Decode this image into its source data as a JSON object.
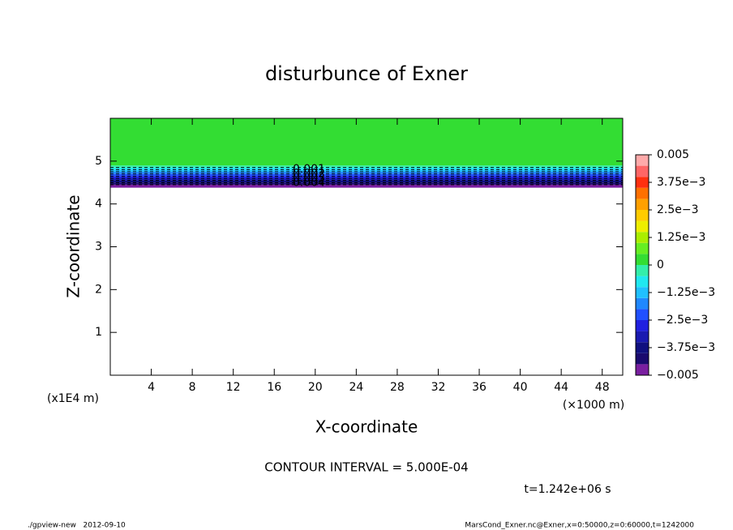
{
  "chart_data": {
    "type": "contour",
    "title": "disturbunce of Exner",
    "xlabel": "X-coordinate",
    "ylabel": "Z-coordinate",
    "x_unit": "(×1000 m)",
    "y_unit": "(x1E4 m)",
    "xlim": [
      0,
      50
    ],
    "ylim": [
      0,
      6
    ],
    "xticks": [
      4,
      8,
      12,
      16,
      20,
      24,
      28,
      32,
      36,
      40,
      44,
      48
    ],
    "yticks": [
      1,
      2,
      3,
      4,
      5
    ],
    "bands": {
      "z_edges": [
        4.38,
        4.45,
        4.5,
        4.55,
        4.6,
        4.65,
        4.7,
        4.75,
        4.8,
        4.85,
        4.9,
        6
      ],
      "values": [
        -0.0048,
        -0.0043,
        -0.0038,
        -0.0033,
        -0.0028,
        -0.0023,
        -0.0018,
        -0.0013,
        -0.0008,
        -0.0003,
        0.0002
      ]
    },
    "contour_labels": [
      "0.001",
      "0.002",
      "0.003",
      "0.004"
    ],
    "colorbar": {
      "levels": [
        -0.005,
        -0.0045,
        -0.004,
        -0.0035,
        -0.003,
        -0.0025,
        -0.002,
        -0.0015,
        -0.001,
        -0.0005,
        0,
        0.0005,
        0.001,
        0.0015,
        0.002,
        0.0025,
        0.003,
        0.0035,
        0.004,
        0.0045,
        0.005
      ],
      "colors": [
        "#7a1fa0",
        "#1a0a6e",
        "#10107f",
        "#1a1ab0",
        "#2020e0",
        "#2050ff",
        "#2088ff",
        "#20c0ff",
        "#20e8f0",
        "#33eeaa",
        "#33dd33",
        "#66ee22",
        "#aaee00",
        "#eeee00",
        "#ffcc00",
        "#ffa000",
        "#ff7000",
        "#ff3010",
        "#ff6666",
        "#ffaaaa"
      ],
      "ticks": [
        {
          "value": 0.005,
          "label": "0.005"
        },
        {
          "value": 0.00375,
          "label": "3.75e−3"
        },
        {
          "value": 0.0025,
          "label": "2.5e−3"
        },
        {
          "value": 0.00125,
          "label": "1.25e−3"
        },
        0,
        {
          "value": -0.00125,
          "label": "−1.25e−3"
        },
        {
          "value": -0.0025,
          "label": "−2.5e−3"
        },
        {
          "value": -0.00375,
          "label": "−3.75e−3"
        },
        {
          "value": -0.005,
          "label": "−0.005"
        }
      ]
    },
    "contour_interval": "CONTOUR INTERVAL = 5.000E-04",
    "time_label": "t=1.242e+06 s",
    "footer_left": "./gpview-new   2012-09-10",
    "footer_right": "MarsCond_Exner.nc@Exner,x=0:50000,z=0:60000,t=1242000"
  }
}
